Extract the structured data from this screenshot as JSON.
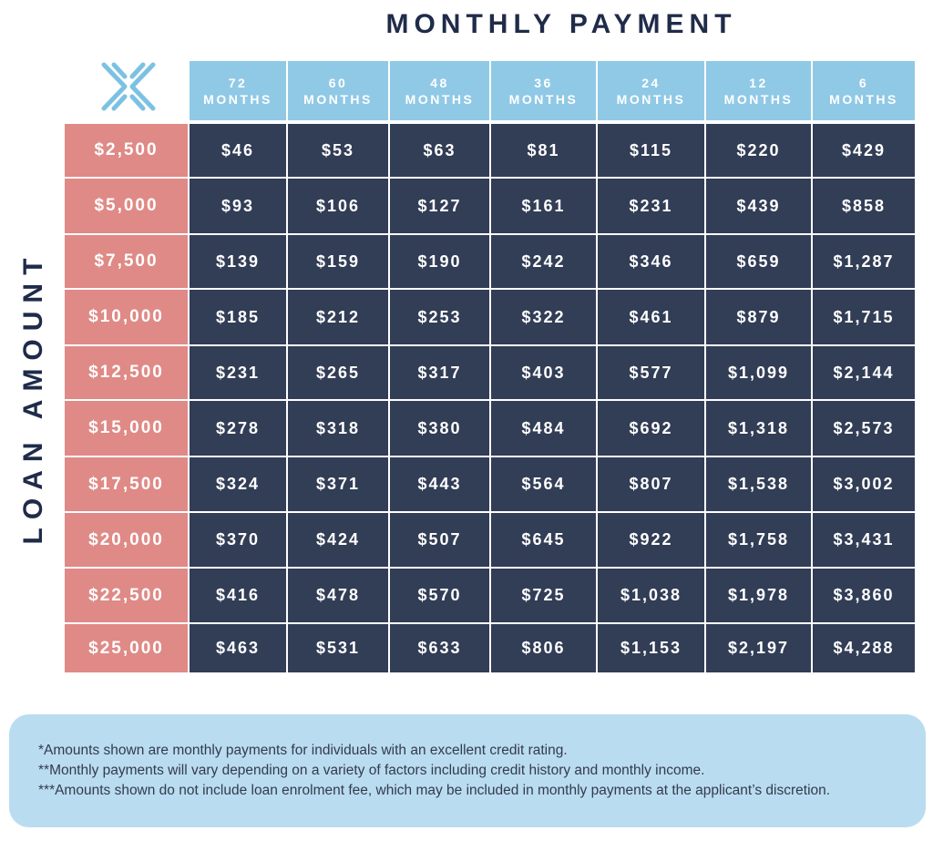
{
  "colors": {
    "header_bg": "#90c9e6",
    "row_label_bg": "#df8a86",
    "value_bg": "#323d56",
    "title_text": "#1f2b49",
    "notes_bg": "#badcf0",
    "logo": "#7cc1e2"
  },
  "logo": {
    "icon": "butterfly-logo-icon"
  },
  "chart_data": {
    "type": "table",
    "title": "MONTHLY PAYMENT",
    "ylabel": "LOAN AMOUNT",
    "columns": [
      {
        "num": "72",
        "unit": "MONTHS"
      },
      {
        "num": "60",
        "unit": "MONTHS"
      },
      {
        "num": "48",
        "unit": "MONTHS"
      },
      {
        "num": "36",
        "unit": "MONTHS"
      },
      {
        "num": "24",
        "unit": "MONTHS"
      },
      {
        "num": "12",
        "unit": "MONTHS"
      },
      {
        "num": "6",
        "unit": "MONTHS"
      }
    ],
    "rows": [
      {
        "label": "$2,500",
        "values": [
          "$46",
          "$53",
          "$63",
          "$81",
          "$115",
          "$220",
          "$429"
        ]
      },
      {
        "label": "$5,000",
        "values": [
          "$93",
          "$106",
          "$127",
          "$161",
          "$231",
          "$439",
          "$858"
        ]
      },
      {
        "label": "$7,500",
        "values": [
          "$139",
          "$159",
          "$190",
          "$242",
          "$346",
          "$659",
          "$1,287"
        ]
      },
      {
        "label": "$10,000",
        "values": [
          "$185",
          "$212",
          "$253",
          "$322",
          "$461",
          "$879",
          "$1,715"
        ]
      },
      {
        "label": "$12,500",
        "values": [
          "$231",
          "$265",
          "$317",
          "$403",
          "$577",
          "$1,099",
          "$2,144"
        ]
      },
      {
        "label": "$15,000",
        "values": [
          "$278",
          "$318",
          "$380",
          "$484",
          "$692",
          "$1,318",
          "$2,573"
        ]
      },
      {
        "label": "$17,500",
        "values": [
          "$324",
          "$371",
          "$443",
          "$564",
          "$807",
          "$1,538",
          "$3,002"
        ]
      },
      {
        "label": "$20,000",
        "values": [
          "$370",
          "$424",
          "$507",
          "$645",
          "$922",
          "$1,758",
          "$3,431"
        ]
      },
      {
        "label": "$22,500",
        "values": [
          "$416",
          "$478",
          "$570",
          "$725",
          "$1,038",
          "$1,978",
          "$3,860"
        ]
      },
      {
        "label": "$25,000",
        "values": [
          "$463",
          "$531",
          "$633",
          "$806",
          "$1,153",
          "$2,197",
          "$4,288"
        ]
      }
    ]
  },
  "notes": [
    "*Amounts shown are monthly payments for individuals with an excellent credit rating.",
    "**Monthly payments will vary depending on a variety of factors including credit history and monthly income.",
    "***Amounts shown do not include loan enrolment fee, which may be included in monthly payments at the applicant’s discretion."
  ]
}
